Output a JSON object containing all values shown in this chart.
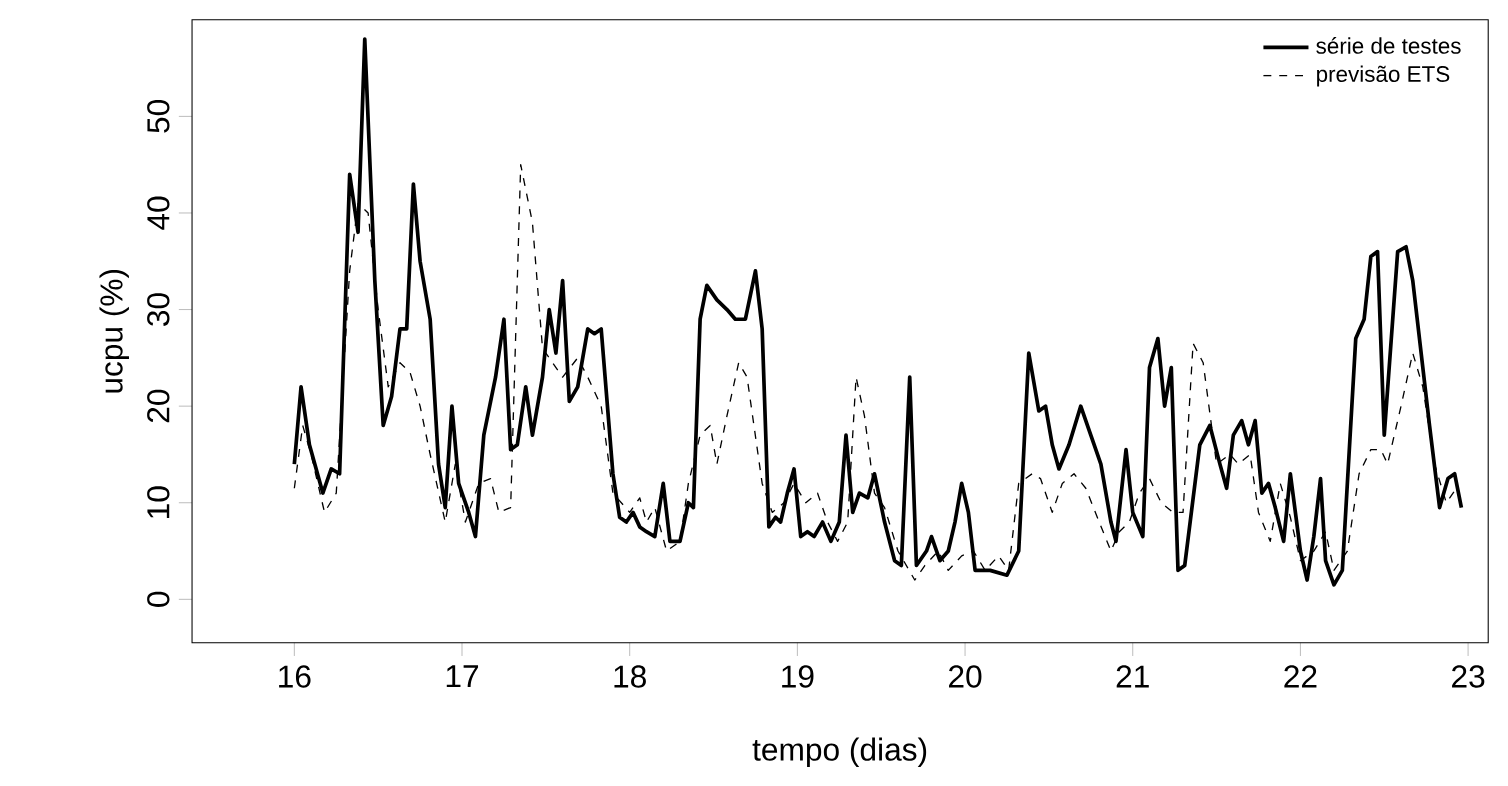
{
  "chart_data": {
    "type": "line",
    "xlabel": "tempo (dias)",
    "ylabel": "ucpu (%)",
    "xlim": [
      15.39,
      23.12
    ],
    "ylim": [
      -4.5,
      60
    ],
    "xticks": [
      16,
      17,
      18,
      19,
      20,
      21,
      22,
      23
    ],
    "yticks": [
      0,
      10,
      20,
      30,
      40,
      50
    ],
    "grid": false,
    "legend": "top right",
    "marker": "none",
    "series": [
      {
        "name": "série de testes",
        "color": "#000000",
        "line_style": "solid",
        "x": [
          16.0,
          16.04,
          16.09,
          16.17,
          16.22,
          16.27,
          16.33,
          16.38,
          16.42,
          16.48,
          16.53,
          16.58,
          16.63,
          16.67,
          16.71,
          16.75,
          16.81,
          16.86,
          16.9,
          16.94,
          16.98,
          17.04,
          17.08,
          17.13,
          17.2,
          17.25,
          17.29,
          17.33,
          17.38,
          17.42,
          17.48,
          17.52,
          17.56,
          17.6,
          17.64,
          17.69,
          17.75,
          17.79,
          17.83,
          17.9,
          17.94,
          17.98,
          18.02,
          18.06,
          18.1,
          18.15,
          18.2,
          18.24,
          18.3,
          18.35,
          18.38,
          18.42,
          18.46,
          18.52,
          18.58,
          18.63,
          18.69,
          18.75,
          18.79,
          18.83,
          18.87,
          18.9,
          18.94,
          18.98,
          19.02,
          19.06,
          19.1,
          19.15,
          19.2,
          19.25,
          19.29,
          19.33,
          19.37,
          19.42,
          19.46,
          19.52,
          19.58,
          19.62,
          19.67,
          19.71,
          19.77,
          19.8,
          19.85,
          19.9,
          19.94,
          19.98,
          20.02,
          20.06,
          20.15,
          20.25,
          20.32,
          20.38,
          20.44,
          20.48,
          20.52,
          20.56,
          20.62,
          20.69,
          20.75,
          20.81,
          20.87,
          20.9,
          20.96,
          21.0,
          21.06,
          21.1,
          21.15,
          21.19,
          21.23,
          21.27,
          21.31,
          21.4,
          21.46,
          21.52,
          21.56,
          21.6,
          21.65,
          21.69,
          21.73,
          21.77,
          21.81,
          21.85,
          21.9,
          21.94,
          22.0,
          22.04,
          22.08,
          22.12,
          22.15,
          22.2,
          22.25,
          22.33,
          22.38,
          22.42,
          22.46,
          22.5,
          22.58,
          22.63,
          22.67,
          22.77,
          22.83,
          22.88,
          22.92,
          22.96
        ],
        "values": [
          14,
          22,
          16,
          11,
          13.5,
          13,
          44,
          38,
          58,
          33,
          18,
          21,
          28,
          28,
          43,
          35,
          29,
          14,
          9.5,
          20,
          12,
          9,
          6.5,
          17,
          23,
          29,
          15.5,
          16,
          22,
          17,
          23,
          30,
          25.5,
          33,
          20.5,
          22,
          28,
          27.5,
          28,
          13,
          8.5,
          8,
          9,
          7.5,
          7,
          6.5,
          12,
          6,
          6,
          10,
          9.5,
          29,
          32.5,
          31,
          30,
          29,
          29,
          34,
          28,
          7.5,
          8.5,
          8,
          11,
          13.5,
          6.5,
          7,
          6.5,
          8,
          6,
          8,
          17,
          9,
          11,
          10.5,
          13,
          8,
          4,
          3.5,
          23,
          3.5,
          5,
          6.5,
          4,
          5,
          8,
          12,
          9,
          3,
          3,
          2.5,
          5,
          25.5,
          19.5,
          20,
          16,
          13.5,
          16,
          20,
          17,
          14,
          8,
          6,
          15.5,
          9,
          6.5,
          24,
          27,
          20,
          24,
          3,
          3.5,
          16,
          18,
          14,
          11.5,
          17,
          18.5,
          16,
          18.5,
          11,
          12,
          9.5,
          6,
          13,
          5,
          2,
          6.5,
          12.5,
          4,
          1.5,
          3,
          27,
          29,
          35.5,
          36,
          17,
          36,
          36.5,
          33,
          18,
          9.5,
          12.5,
          13,
          9.5
        ]
      },
      {
        "name": "previsão ETS",
        "color": "#000000",
        "line_style": "dashed",
        "x": [
          16.0,
          16.05,
          16.1,
          16.18,
          16.25,
          16.33,
          16.38,
          16.44,
          16.5,
          16.56,
          16.63,
          16.69,
          16.75,
          16.81,
          16.9,
          16.96,
          17.02,
          17.1,
          17.17,
          17.22,
          17.29,
          17.35,
          17.42,
          17.48,
          17.52,
          17.6,
          17.69,
          17.75,
          17.83,
          17.9,
          18.0,
          18.06,
          18.1,
          18.15,
          18.22,
          18.3,
          18.35,
          18.42,
          18.48,
          18.52,
          18.58,
          18.65,
          18.7,
          18.79,
          18.85,
          18.92,
          18.98,
          19.05,
          19.12,
          19.18,
          19.24,
          19.3,
          19.35,
          19.4,
          19.46,
          19.52,
          19.6,
          19.7,
          19.76,
          19.84,
          19.9,
          19.98,
          20.05,
          20.12,
          20.2,
          20.26,
          20.32,
          20.4,
          20.45,
          20.52,
          20.58,
          20.65,
          20.72,
          20.8,
          20.87,
          20.92,
          20.98,
          21.04,
          21.1,
          21.17,
          21.24,
          21.3,
          21.36,
          21.42,
          21.5,
          21.58,
          21.63,
          21.7,
          21.75,
          21.82,
          21.88,
          21.94,
          22.0,
          22.08,
          22.15,
          22.2,
          22.28,
          22.35,
          22.42,
          22.48,
          22.52,
          22.6,
          22.67,
          22.73,
          22.8,
          22.87,
          22.93
        ],
        "values": [
          11.5,
          18,
          15,
          9,
          11,
          34,
          41,
          40,
          30,
          22,
          24.5,
          23.5,
          20,
          15,
          8,
          14,
          8,
          12,
          12.5,
          9,
          9.5,
          45,
          39,
          26,
          25,
          23,
          25,
          23,
          20,
          11,
          9,
          10.5,
          8,
          9.5,
          5,
          6,
          12,
          17,
          18,
          14,
          19,
          24.5,
          23,
          12,
          9,
          10,
          12,
          10,
          11,
          8,
          6,
          8,
          23,
          19,
          11,
          9.5,
          5,
          2,
          3.5,
          5,
          3,
          4.5,
          5,
          3,
          4.5,
          3,
          12,
          13,
          12.5,
          9,
          12,
          13,
          11.5,
          8,
          5,
          7,
          8,
          11,
          12.5,
          10,
          9,
          9,
          26.5,
          24.5,
          14,
          15,
          14,
          15,
          9,
          6,
          12,
          8.5,
          4,
          5,
          7,
          3,
          5,
          13,
          15.5,
          15.5,
          14,
          20,
          25.5,
          22,
          14,
          10,
          11.5
        ]
      }
    ]
  }
}
